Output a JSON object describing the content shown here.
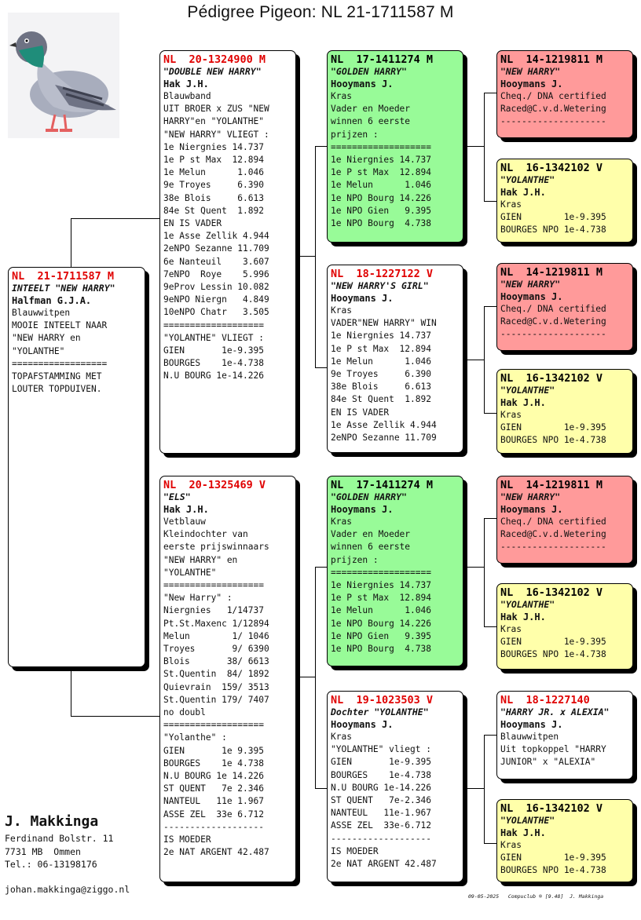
{
  "title": "Pédigree Pigeon: NL  21-1711587 M",
  "colors": {
    "ring_red": "#e00000",
    "green": "#98fb98",
    "red": "#ff9a9a",
    "yellow": "#ffffaa"
  },
  "logo_icon": "pigeon-icon",
  "cards": {
    "main": {
      "ring": "NL  21-1711587 M",
      "nick": "INTEELT \"NEW HARRY\"",
      "owner": "Halfman G.J.A.",
      "lines": [
        "Blauwwitpen",
        "MOOIE INTEELT NAAR",
        "\"NEW HARRY en",
        "\"YOLANTHE\"",
        "==================",
        "TOPAFSTAMMING MET",
        "LOUTER TOPDUIVEN."
      ]
    },
    "father": {
      "ring": "NL  20-1324900 M",
      "nick": "\"DOUBLE NEW HARRY\"",
      "owner": "Hak J.H.",
      "lines": [
        "Blauwband",
        "UIT BROER x ZUS \"NEW",
        "HARRY\"en \"YOLANTHE\"",
        "\"NEW HARRY\" VLIEGT :",
        "1e Niergnies 14.737",
        "1e P st Max  12.894",
        "1e Melun      1.046",
        "9e Troyes     6.390",
        "38e Blois     6.613",
        "84e St Quent  1.892",
        "EN IS VADER",
        "1e Asse Zellik 4.944",
        "2eNPO Sezanne 11.709",
        "6e Nanteuil    3.607",
        "7eNPO  Roye    5.996",
        "9eProv Lessin 10.082",
        "9eNPO Niergn   4.849",
        "10eNPO Chatr   3.505",
        "===================",
        "\"YOLANTHE\" VLIEGT :",
        "GIEN       1e-9.395",
        "BOURGES    1e-4.738",
        "N.U BOURG 1e-14.226"
      ]
    },
    "mother": {
      "ring": "NL  20-1325469 V",
      "nick": "\"ELS\"",
      "owner": "Hak J.H.",
      "lines": [
        "Vetblauw",
        "Kleindochter van",
        "eerste prijswinnaars",
        "\"NEW HARRY\" en",
        "\"YOLANTHE\"",
        "===================",
        "\"New Harry\" :",
        "Niergnies   1/14737",
        "Pt.St.Maxenc 1/12894",
        "Melun        1/ 1046",
        "Troyes       9/ 6390",
        "Blois       38/ 6613",
        "St.Quentin  84/ 1892",
        "Quievrain  159/ 3513",
        "St.Quentin 179/ 7407",
        "no doubl",
        "===================",
        "\"Yolanthe\" :",
        "GIEN       1e 9.395",
        "BOURGES    1e 4.738",
        "N.U BOURG 1e 14.226",
        "ST QUENT   7e 2.346",
        "NANTEUL   11e 1.967",
        "ASSE ZEL  33e 6.712",
        "-------------------",
        "IS MOEDER",
        "2e NAT ARGENT 42.487"
      ]
    },
    "ff": {
      "ring": "NL  17-1411274 M",
      "nick": "\"GOLDEN HARRY\"",
      "owner": "Hooymans J.",
      "lines": [
        "Kras",
        "Vader en Moeder",
        "winnen 6 eerste",
        "prijzen :",
        "===================",
        "1e Niergnies 14.737",
        "1e P st Max  12.894",
        "1e Melun      1.046",
        "1e NPO Bourg 14.226",
        "1e NPO Gien   9.395",
        "1e NPO Bourg  4.738"
      ]
    },
    "fm": {
      "ring": "NL  18-1227122 V",
      "nick": "\"NEW HARRY'S GIRL\"",
      "owner": "Hooymans J.",
      "lines": [
        "Kras",
        "VADER\"NEW HARRY\" WIN",
        "1e Niergnies 14.737",
        "1e P st Max  12.894",
        "1e Melun      1.046",
        "9e Troyes     6.390",
        "38e Blois     6.613",
        "84e St Quent  1.892",
        "EN IS VADER",
        "1e Asse Zellik 4.944",
        "2eNPO Sezanne 11.709"
      ]
    },
    "mf": {
      "ring": "NL  17-1411274 M",
      "nick": "\"GOLDEN HARRY\"",
      "owner": "Hooymans J.",
      "lines": [
        "Kras",
        "Vader en Moeder",
        "winnen 6 eerste",
        "prijzen :",
        "===================",
        "1e Niergnies 14.737",
        "1e P st Max  12.894",
        "1e Melun      1.046",
        "1e NPO Bourg 14.226",
        "1e NPO Gien   9.395",
        "1e NPO Bourg  4.738"
      ]
    },
    "mm": {
      "ring": "NL  19-1023503 V",
      "nick": "Dochter \"YOLANTHE\"",
      "owner": "Hooymans J.",
      "lines": [
        "Kras",
        "\"YOLANTHE\" vliegt :",
        "GIEN       1e-9.395",
        "BOURGES    1e-4.738",
        "N.U BOURG 1e-14.226",
        "ST QUENT   7e-2.346",
        "NANTEUL   11e-1.967",
        "ASSE ZEL  33e-6.712",
        "-------------------",
        "IS MOEDER",
        "2e NAT ARGENT 42.487"
      ]
    },
    "fff": {
      "ring": "NL  14-1219811 M",
      "nick": "\"NEW HARRY\"",
      "owner": "Hooymans J.",
      "lines": [
        "Cheq./ DNA certified",
        "Raced@C.v.d.Wetering",
        "--------------------"
      ]
    },
    "ffm": {
      "ring": "NL  16-1342102 V",
      "nick": "\"YOLANTHE\"",
      "owner": "Hak J.H.",
      "lines": [
        "Kras",
        "GIEN        1e-9.395",
        "BOURGES NPO 1e-4.738"
      ]
    },
    "fmf": {
      "ring": "NL  14-1219811 M",
      "nick": "\"NEW HARRY\"",
      "owner": "Hooymans J.",
      "lines": [
        "Cheq./ DNA certified",
        "Raced@C.v.d.Wetering",
        "--------------------"
      ]
    },
    "fmm": {
      "ring": "NL  16-1342102 V",
      "nick": "\"YOLANTHE\"",
      "owner": "Hak J.H.",
      "lines": [
        "Kras",
        "GIEN        1e-9.395",
        "BOURGES NPO 1e-4.738"
      ]
    },
    "mff": {
      "ring": "NL  14-1219811 M",
      "nick": "\"NEW HARRY\"",
      "owner": "Hooymans J.",
      "lines": [
        "Cheq./ DNA certified",
        "Raced@C.v.d.Wetering",
        "--------------------"
      ]
    },
    "mfm": {
      "ring": "NL  16-1342102 V",
      "nick": "\"YOLANTHE\"",
      "owner": "Hak J.H.",
      "lines": [
        "Kras",
        "GIEN        1e-9.395",
        "BOURGES NPO 1e-4.738"
      ]
    },
    "mmf": {
      "ring": "NL  18-1227140",
      "nick": "\"HARRY JR. x ALEXIA\"",
      "owner": "Hooymans J.",
      "lines": [
        "Blauwwitpen",
        "Uit topkoppel \"HARRY",
        "JUNIOR\" x \"ALEXIA\""
      ]
    },
    "mmm": {
      "ring": "NL  16-1342102 V",
      "nick": "\"YOLANTHE\"",
      "owner": "Hak J.H.",
      "lines": [
        "Kras",
        "GIEN        1e-9.395",
        "BOURGES NPO 1e-4.738"
      ]
    }
  },
  "breeder": {
    "name": "J. Makkinga",
    "address": "Ferdinand Bolstr. 11",
    "city": "7731 MB  Ommen",
    "tel": "Tel.: 06-13198176",
    "email": "johan.makkinga@ziggo.nl"
  },
  "footer": "09-05-2025   Compuclub ® [9.48]  J. Makkinga"
}
